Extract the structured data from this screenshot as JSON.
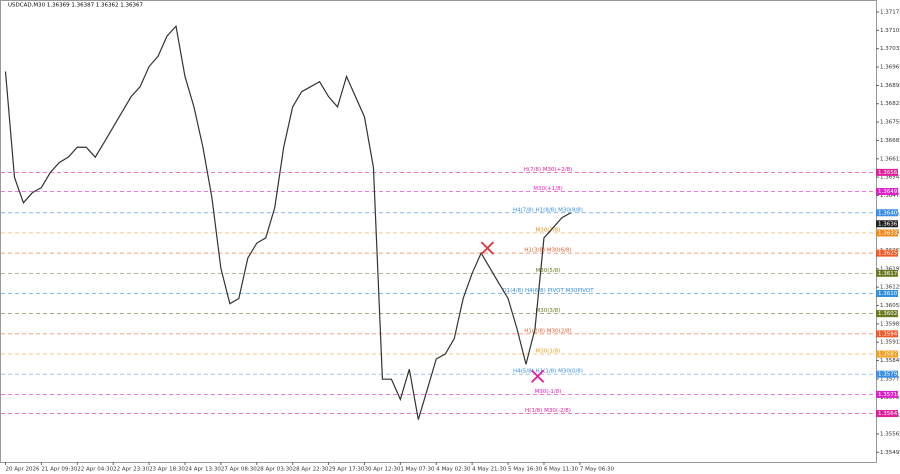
{
  "chart_data": {
    "type": "line",
    "title": "USDCAD,M30 1.36369 1.36387 1.36362 1.36367",
    "x": [
      0,
      1,
      2,
      3,
      4,
      5,
      6,
      7,
      8,
      9,
      10,
      11,
      12,
      13,
      14,
      15,
      16,
      17,
      18,
      19,
      20,
      21,
      22,
      23,
      24,
      25,
      26,
      27,
      28,
      29,
      30,
      31,
      32,
      33,
      34,
      35,
      36,
      37,
      38,
      39,
      40,
      41,
      42,
      43,
      44,
      45,
      46,
      47,
      48,
      49,
      50,
      51,
      52,
      53,
      54,
      55,
      56,
      57,
      58,
      59,
      60,
      61,
      62,
      63
    ],
    "series": [
      {
        "color": "#333333",
        "values": [
          1.36948,
          1.36544,
          1.36447,
          1.36486,
          1.36505,
          1.36563,
          1.36601,
          1.36621,
          1.36659,
          1.36659,
          1.36621,
          1.36678,
          1.36736,
          1.36794,
          1.36852,
          1.3689,
          1.36967,
          1.37006,
          1.37083,
          1.37121,
          1.36929,
          1.36813,
          1.36659,
          1.36467,
          1.36197,
          1.36062,
          1.36082,
          1.36236,
          1.36293,
          1.36313,
          1.36428,
          1.36659,
          1.36813,
          1.36871,
          1.3689,
          1.36909,
          1.36852,
          1.36813,
          1.36929,
          1.36852,
          1.36775,
          1.36582,
          1.35774,
          1.35774,
          1.35697,
          1.35812,
          1.3562,
          1.35735,
          1.35851,
          1.3587,
          1.35928,
          1.36082,
          1.36178,
          1.36255,
          1.36197,
          1.36139,
          1.36082,
          1.35966,
          1.35831,
          1.35966,
          1.36313,
          1.36351,
          1.3639,
          1.36409
        ]
      }
    ],
    "ylim": [
      1.35458,
      1.37217
    ],
    "yticks": [
      1.37175,
      1.37105,
      1.37035,
      1.36965,
      1.36895,
      1.36825,
      1.36755,
      1.36685,
      1.36615,
      1.36545,
      1.36475,
      1.36405,
      1.36335,
      1.36265,
      1.36195,
      1.36125,
      1.36055,
      1.35985,
      1.35915,
      1.35845,
      1.35775,
      1.35705,
      1.35635,
      1.35565,
      1.35495
    ],
    "xlim": [
      -0.5,
      97
    ],
    "xticks": [
      {
        "value": 0,
        "label": "20 Apr 2026"
      },
      {
        "value": 4,
        "label": "21 Apr 09:30"
      },
      {
        "value": 8,
        "label": "22 Apr 04:30"
      },
      {
        "value": 12,
        "label": "22 Apr 23:30"
      },
      {
        "value": 16,
        "label": "23 Apr 18:30"
      },
      {
        "value": 20,
        "label": "24 Apr 13:30"
      },
      {
        "value": 24,
        "label": "27 Apr 08:30"
      },
      {
        "value": 28,
        "label": "28 Apr 03:30"
      },
      {
        "value": 32,
        "label": "28 Apr 22:30"
      },
      {
        "value": 36,
        "label": "29 Apr 17:30"
      },
      {
        "value": 40,
        "label": "30 Apr 12:30"
      },
      {
        "value": 44,
        "label": "1 May 07:30"
      },
      {
        "value": 48,
        "label": "4 May 02:30"
      },
      {
        "value": 52,
        "label": "4 May 21:30"
      },
      {
        "value": 56,
        "label": "5 May 16:30"
      },
      {
        "value": 60,
        "label": "6 May 11:30"
      },
      {
        "value": 64,
        "label": "7 May 06:30"
      }
    ],
    "levels": [
      {
        "label": "H(7/8) M30(+2/8)",
        "value": 1.36563,
        "color": "#e0209a"
      },
      {
        "label": "M30(+1/8)",
        "value": 1.3649,
        "color": "#e020c8"
      },
      {
        "label": "H4(7/8) H1(8/8) M30(8/8)",
        "value": 1.36409,
        "color": "#3a8ee6"
      },
      {
        "label": "M30(7/8)",
        "value": 1.36332,
        "color": "#f08a1c"
      },
      {
        "label": "H1(3/8) M30(6/8)",
        "value": 1.36255,
        "color": "#f05a28"
      },
      {
        "label": "M30(5/8)",
        "value": 1.36178,
        "color": "#6b7a1e"
      },
      {
        "label": "D1(4/8) H4(6/8) PIVOT M30PIVOT",
        "value": 1.36101,
        "color": "#2f8ee0"
      },
      {
        "label": "M30(3/8)",
        "value": 1.36024,
        "color": "#6b7a1e"
      },
      {
        "label": "H1(2/8) M30(2/8)",
        "value": 1.35947,
        "color": "#f05a28"
      },
      {
        "label": "M30(1/8)",
        "value": 1.3587,
        "color": "#f0a020"
      },
      {
        "label": "H4(5/8) H1(1/8) M30(0/8)",
        "value": 1.35793,
        "color": "#3a8ee6"
      },
      {
        "label": "M30(-1/8)",
        "value": 1.35716,
        "color": "#e020c8"
      },
      {
        "label": "H(1/8) M30(-2/8)",
        "value": 1.35643,
        "color": "#e0209a"
      }
    ],
    "last": 1.36367,
    "markers": [
      {
        "x": 53.7,
        "value": 1.36274,
        "color": "#e0303a"
      },
      {
        "x": 59.3,
        "value": 1.35785,
        "color": "#e020a0"
      }
    ]
  }
}
